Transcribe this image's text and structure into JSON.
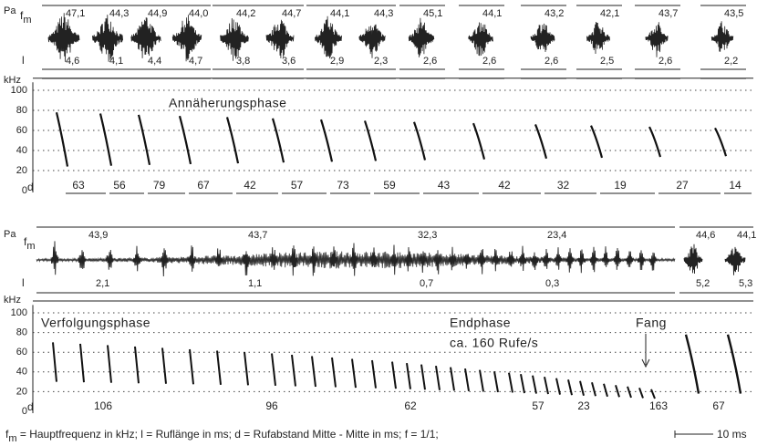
{
  "axis": {
    "pa": "Pa",
    "f": "f",
    "f_sub": "m",
    "l": "l",
    "khz": "kHz",
    "d": "d",
    "yticks": [
      100,
      80,
      60,
      40,
      20,
      0
    ]
  },
  "top": {
    "phase": "Annäherungsphase",
    "calls": [
      {
        "fm": "47,1",
        "l": "4,6",
        "d": "63"
      },
      {
        "fm": "44,3",
        "l": "4,1",
        "d": "56"
      },
      {
        "fm": "44,9",
        "l": "4,4",
        "d": "79"
      },
      {
        "fm": "44,0",
        "l": "4,7",
        "d": "67"
      },
      {
        "fm": "44,2",
        "l": "3,8",
        "d": "42"
      },
      {
        "fm": "44,7",
        "l": "3,6",
        "d": "57"
      },
      {
        "fm": "44,1",
        "l": "2,9",
        "d": "73"
      },
      {
        "fm": "44,3",
        "l": "2,3",
        "d": "59"
      },
      {
        "fm": "45,1",
        "l": "2,6",
        "d": "43"
      },
      {
        "fm": "44,1",
        "l": "2,6",
        "d": "42"
      },
      {
        "fm": "43,2",
        "l": "2,6",
        "d": "32"
      },
      {
        "fm": "42,1",
        "l": "2,5",
        "d": "19"
      },
      {
        "fm": "43,7",
        "l": "2,6",
        "d": "27"
      },
      {
        "fm": "43,5",
        "l": "2,2",
        "d": "14"
      }
    ]
  },
  "bottom": {
    "phases": [
      "Verfolgungsphase",
      "Endphase",
      "ca. 160 Rufe/s",
      "Fang"
    ],
    "fm": [
      "43,9",
      "43,7",
      "32,3",
      "23,4",
      "44,6",
      "44,1"
    ],
    "l": [
      "2,1",
      "1,1",
      "0,7",
      "0,3",
      "5,2",
      "5,3"
    ],
    "d": [
      "106",
      "96",
      "62",
      "57",
      "23",
      "163",
      "67"
    ]
  },
  "caption": {
    "f": "f",
    "f_sub": "m",
    "text": " = Hauptfrequenz in kHz; l = Ruflänge in ms; d = Rufabstand Mitte - Mitte in ms; f = 1/1;",
    "scale": "10 ms"
  }
}
